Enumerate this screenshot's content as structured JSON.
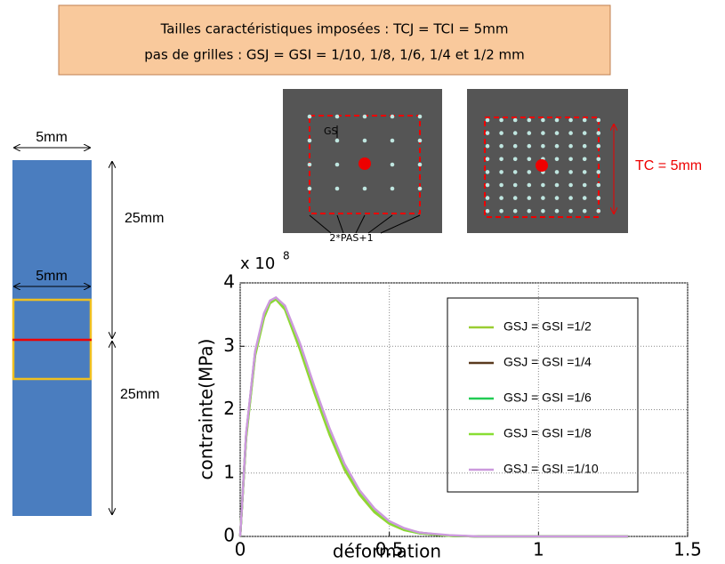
{
  "header": {
    "line1": "Tailles caractéristiques imposées : TCJ = TCI = 5mm",
    "line2": "pas de grilles : GSJ = GSI = 1/10, 1/8, 1/6, 1/4 et 1/2 mm"
  },
  "specimen": {
    "width_label": "5mm",
    "window_label": "5mm",
    "upper_length": "25mm",
    "lower_length": "25mm"
  },
  "images": {
    "gs_label": "GS",
    "points_label": "2*PAS+1",
    "tc_label": "TC = 5mm"
  },
  "chart_data": {
    "type": "line",
    "xlabel": "déformation",
    "ylabel": "contrainte(MPa)",
    "exponent_base": "x 10",
    "exponent": "8",
    "x": [
      0,
      0.02,
      0.05,
      0.08,
      0.1,
      0.12,
      0.15,
      0.2,
      0.25,
      0.3,
      0.35,
      0.4,
      0.45,
      0.5,
      0.55,
      0.6,
      0.7,
      0.8,
      1.0,
      1.3
    ],
    "series": [
      {
        "name": "GSJ = GSI =1/2",
        "color": "#9acd32",
        "values": [
          0,
          1.55,
          2.85,
          3.45,
          3.68,
          3.74,
          3.58,
          2.95,
          2.25,
          1.6,
          1.05,
          0.66,
          0.38,
          0.2,
          0.1,
          0.05,
          0.01,
          0,
          0,
          0
        ]
      },
      {
        "name": "GSJ = GSI =1/4",
        "color": "#5a3a1e",
        "values": [
          0,
          1.6,
          2.9,
          3.5,
          3.7,
          3.76,
          3.62,
          3.02,
          2.32,
          1.67,
          1.12,
          0.71,
          0.42,
          0.23,
          0.12,
          0.06,
          0.01,
          0,
          0,
          0
        ]
      },
      {
        "name": "GSJ = GSI =1/6",
        "color": "#22cc55",
        "values": [
          0,
          1.58,
          2.88,
          3.48,
          3.69,
          3.75,
          3.6,
          3.0,
          2.3,
          1.65,
          1.1,
          0.7,
          0.41,
          0.22,
          0.11,
          0.05,
          0.01,
          0,
          0,
          0
        ]
      },
      {
        "name": "GSJ = GSI =1/8",
        "color": "#88dd33",
        "values": [
          0,
          1.57,
          2.87,
          3.47,
          3.69,
          3.75,
          3.59,
          2.98,
          2.28,
          1.63,
          1.08,
          0.69,
          0.4,
          0.21,
          0.11,
          0.05,
          0.01,
          0,
          0,
          0
        ]
      },
      {
        "name": "GSJ = GSI =1/10",
        "color": "#cc99dd",
        "values": [
          0,
          1.62,
          2.92,
          3.52,
          3.72,
          3.77,
          3.64,
          3.05,
          2.35,
          1.7,
          1.14,
          0.73,
          0.44,
          0.24,
          0.13,
          0.06,
          0.02,
          0,
          0,
          0
        ]
      }
    ],
    "xlim": [
      0,
      1.5
    ],
    "ylim": [
      0,
      4
    ],
    "xticks": [
      0,
      0.5,
      1,
      1.5
    ],
    "yticks": [
      0,
      1,
      2,
      3,
      4
    ],
    "grid": true
  }
}
